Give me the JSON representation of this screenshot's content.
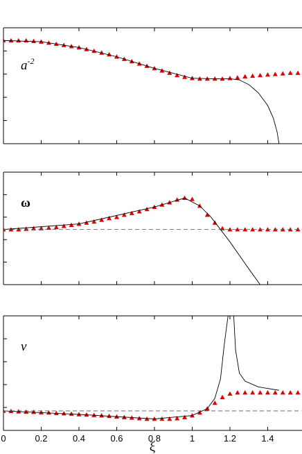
{
  "chart_data": [
    {
      "type": "line",
      "label": {
        "base": "a",
        "sup": "-2"
      },
      "label_style": "italic",
      "xlim": [
        0,
        1.58
      ],
      "xticks": [
        0,
        0.2,
        0.4,
        0.6,
        0.8,
        1,
        1.2,
        1.4
      ],
      "xticklabels": false,
      "ylim": [
        0,
        1
      ],
      "yticks": [
        0,
        0.2,
        0.4,
        0.6,
        0.8,
        1
      ],
      "series": [
        {
          "color": "#e00000",
          "marker": "triangle",
          "x": [
            0,
            0.04,
            0.08,
            0.12,
            0.16,
            0.2,
            0.24,
            0.28,
            0.32,
            0.36,
            0.4,
            0.44,
            0.48,
            0.52,
            0.56,
            0.6,
            0.64,
            0.68,
            0.72,
            0.76,
            0.8,
            0.84,
            0.88,
            0.92,
            0.96,
            1.0,
            1.04,
            1.08,
            1.12,
            1.16,
            1.2,
            1.24,
            1.28,
            1.32,
            1.36,
            1.4,
            1.44,
            1.48,
            1.52,
            1.56
          ],
          "values": [
            0.89,
            0.89,
            0.89,
            0.89,
            0.885,
            0.88,
            0.87,
            0.86,
            0.85,
            0.84,
            0.83,
            0.815,
            0.8,
            0.785,
            0.77,
            0.75,
            0.73,
            0.71,
            0.69,
            0.67,
            0.65,
            0.63,
            0.61,
            0.59,
            0.575,
            0.565,
            0.56,
            0.56,
            0.56,
            0.56,
            0.565,
            0.57,
            0.58,
            0.585,
            0.59,
            0.595,
            0.6,
            0.605,
            0.61,
            0.61
          ]
        },
        {
          "color": "#000000",
          "marker": "none",
          "x": [
            0,
            0.2,
            0.4,
            0.6,
            0.8,
            1.0,
            1.1,
            1.2,
            1.25,
            1.3,
            1.35,
            1.4,
            1.43,
            1.45,
            1.46
          ],
          "values": [
            0.89,
            0.88,
            0.83,
            0.75,
            0.65,
            0.565,
            0.56,
            0.56,
            0.55,
            0.51,
            0.44,
            0.33,
            0.22,
            0.1,
            0
          ]
        }
      ]
    },
    {
      "type": "line",
      "label": {
        "base": "ω"
      },
      "label_style": "bold",
      "xlim": [
        0,
        1.58
      ],
      "xticks": [
        0,
        0.2,
        0.4,
        0.6,
        0.8,
        1,
        1.2,
        1.4
      ],
      "xticklabels": false,
      "ylim": [
        0,
        1
      ],
      "yticks": [
        0,
        0.2,
        0.4,
        0.6,
        0.8,
        1
      ],
      "series": [
        {
          "color": "#e00000",
          "marker": "triangle",
          "x": [
            0,
            0.04,
            0.08,
            0.12,
            0.16,
            0.2,
            0.24,
            0.28,
            0.32,
            0.36,
            0.4,
            0.44,
            0.48,
            0.52,
            0.56,
            0.6,
            0.64,
            0.68,
            0.72,
            0.76,
            0.8,
            0.84,
            0.88,
            0.92,
            0.96,
            1.0,
            1.04,
            1.08,
            1.12,
            1.16,
            1.2,
            1.24,
            1.28,
            1.32,
            1.36,
            1.4,
            1.44,
            1.48,
            1.52,
            1.56
          ],
          "values": [
            0.49,
            0.49,
            0.49,
            0.495,
            0.5,
            0.5,
            0.505,
            0.51,
            0.52,
            0.53,
            0.54,
            0.55,
            0.56,
            0.575,
            0.59,
            0.6,
            0.62,
            0.635,
            0.65,
            0.67,
            0.69,
            0.71,
            0.73,
            0.755,
            0.77,
            0.76,
            0.7,
            0.62,
            0.55,
            0.5,
            0.49,
            0.49,
            0.49,
            0.49,
            0.49,
            0.49,
            0.49,
            0.49,
            0.49,
            0.49
          ]
        },
        {
          "color": "#000000",
          "marker": "none",
          "x": [
            0,
            0.4,
            0.8,
            0.96,
            1.04,
            1.1,
            1.2,
            1.3,
            1.36
          ],
          "values": [
            0.49,
            0.54,
            0.69,
            0.77,
            0.7,
            0.6,
            0.38,
            0.14,
            0
          ]
        },
        {
          "color": "#555555",
          "marker": "none",
          "dash": true,
          "x": [
            0,
            1.58
          ],
          "values": [
            0.49,
            0.49
          ]
        }
      ]
    },
    {
      "type": "line",
      "label": {
        "base": "v"
      },
      "label_style": "italic",
      "xlim": [
        0,
        1.58
      ],
      "xticks": [
        0,
        0.2,
        0.4,
        0.6,
        0.8,
        1,
        1.2,
        1.4
      ],
      "xticklabels": true,
      "xlabel": "ξ",
      "ylim": [
        0,
        1
      ],
      "yticks": [
        0,
        0.2,
        0.4,
        0.6,
        0.8,
        1
      ],
      "series": [
        {
          "color": "#e00000",
          "marker": "triangle",
          "x": [
            0,
            0.04,
            0.08,
            0.12,
            0.16,
            0.2,
            0.24,
            0.28,
            0.32,
            0.36,
            0.4,
            0.44,
            0.48,
            0.52,
            0.56,
            0.6,
            0.64,
            0.68,
            0.72,
            0.76,
            0.8,
            0.84,
            0.88,
            0.92,
            0.96,
            1.0,
            1.04,
            1.08,
            1.12,
            1.16,
            1.2,
            1.24,
            1.28,
            1.32,
            1.36,
            1.4,
            1.44,
            1.48,
            1.52,
            1.56
          ],
          "values": [
            0.17,
            0.168,
            0.165,
            0.162,
            0.16,
            0.157,
            0.155,
            0.15,
            0.148,
            0.145,
            0.14,
            0.137,
            0.133,
            0.13,
            0.125,
            0.12,
            0.115,
            0.11,
            0.105,
            0.1,
            0.1,
            0.1,
            0.1,
            0.105,
            0.115,
            0.13,
            0.155,
            0.19,
            0.24,
            0.29,
            0.32,
            0.33,
            0.33,
            0.33,
            0.33,
            0.33,
            0.33,
            0.33,
            0.33,
            0.33
          ]
        },
        {
          "color": "#000000",
          "marker": "none",
          "x": [
            0,
            0.4,
            0.8,
            1.0,
            1.08,
            1.12,
            1.15,
            1.17,
            1.19,
            1.2,
            1.22,
            1.23,
            1.25,
            1.28,
            1.35,
            1.46
          ],
          "values": [
            0.17,
            0.14,
            0.1,
            0.13,
            0.19,
            0.28,
            0.45,
            0.75,
            1.0,
            null,
            1.0,
            0.7,
            0.5,
            0.43,
            0.38,
            0.35
          ]
        },
        {
          "color": "#555555",
          "marker": "none",
          "dash": true,
          "x": [
            0,
            1.58
          ],
          "values": [
            0.17,
            0.17
          ]
        }
      ]
    }
  ]
}
